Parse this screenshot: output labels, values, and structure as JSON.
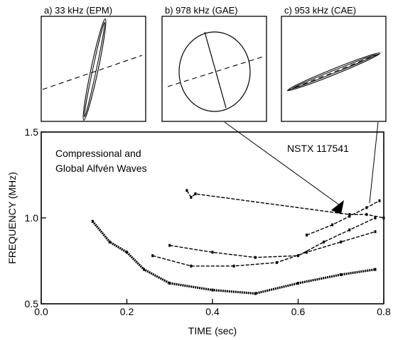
{
  "insets": [
    {
      "label": "a) 33 kHz (EPM)"
    },
    {
      "label": "b) 978 kHz (GAE)"
    },
    {
      "label": "c) 953 kHz (CAE)"
    }
  ],
  "annotation": {
    "line1": "Compressional and",
    "line2": "Global Alfvén Waves",
    "shot": "NSTX 117541"
  },
  "chart_data": {
    "type": "scatter",
    "xlabel": "TIME (sec)",
    "ylabel": "FREQUENCY (MHz)",
    "xlim": [
      0.0,
      0.8
    ],
    "ylim": [
      0.5,
      1.5
    ],
    "xticks": [
      "0.0",
      "0.2",
      "0.4",
      "0.6",
      "0.8"
    ],
    "yticks": [
      "0.5",
      "1.0",
      "1.5"
    ],
    "series": [
      {
        "values": [
          [
            0.12,
            0.98
          ],
          [
            0.16,
            0.86
          ],
          [
            0.2,
            0.8
          ],
          [
            0.24,
            0.7
          ],
          [
            0.3,
            0.62
          ],
          [
            0.4,
            0.58
          ],
          [
            0.5,
            0.56
          ],
          [
            0.6,
            0.62
          ],
          [
            0.7,
            0.67
          ],
          [
            0.78,
            0.7
          ]
        ]
      },
      {
        "values": [
          [
            0.26,
            0.78
          ],
          [
            0.35,
            0.72
          ],
          [
            0.45,
            0.72
          ],
          [
            0.55,
            0.74
          ],
          [
            0.62,
            0.8
          ],
          [
            0.7,
            0.86
          ],
          [
            0.78,
            0.92
          ]
        ]
      },
      {
        "values": [
          [
            0.3,
            0.84
          ],
          [
            0.4,
            0.8
          ],
          [
            0.5,
            0.77
          ],
          [
            0.6,
            0.78
          ],
          [
            0.66,
            0.86
          ],
          [
            0.72,
            0.93
          ],
          [
            0.78,
            1.0
          ]
        ]
      },
      {
        "values": [
          [
            0.62,
            0.9
          ],
          [
            0.68,
            0.96
          ],
          [
            0.72,
            1.01
          ],
          [
            0.76,
            1.06
          ],
          [
            0.79,
            1.1
          ]
        ]
      },
      {
        "values": [
          [
            0.34,
            1.16
          ],
          [
            0.35,
            1.12
          ],
          [
            0.36,
            1.14
          ],
          [
            0.72,
            1.02
          ],
          [
            0.76,
            1.02
          ],
          [
            0.8,
            1.0
          ]
        ]
      }
    ]
  }
}
